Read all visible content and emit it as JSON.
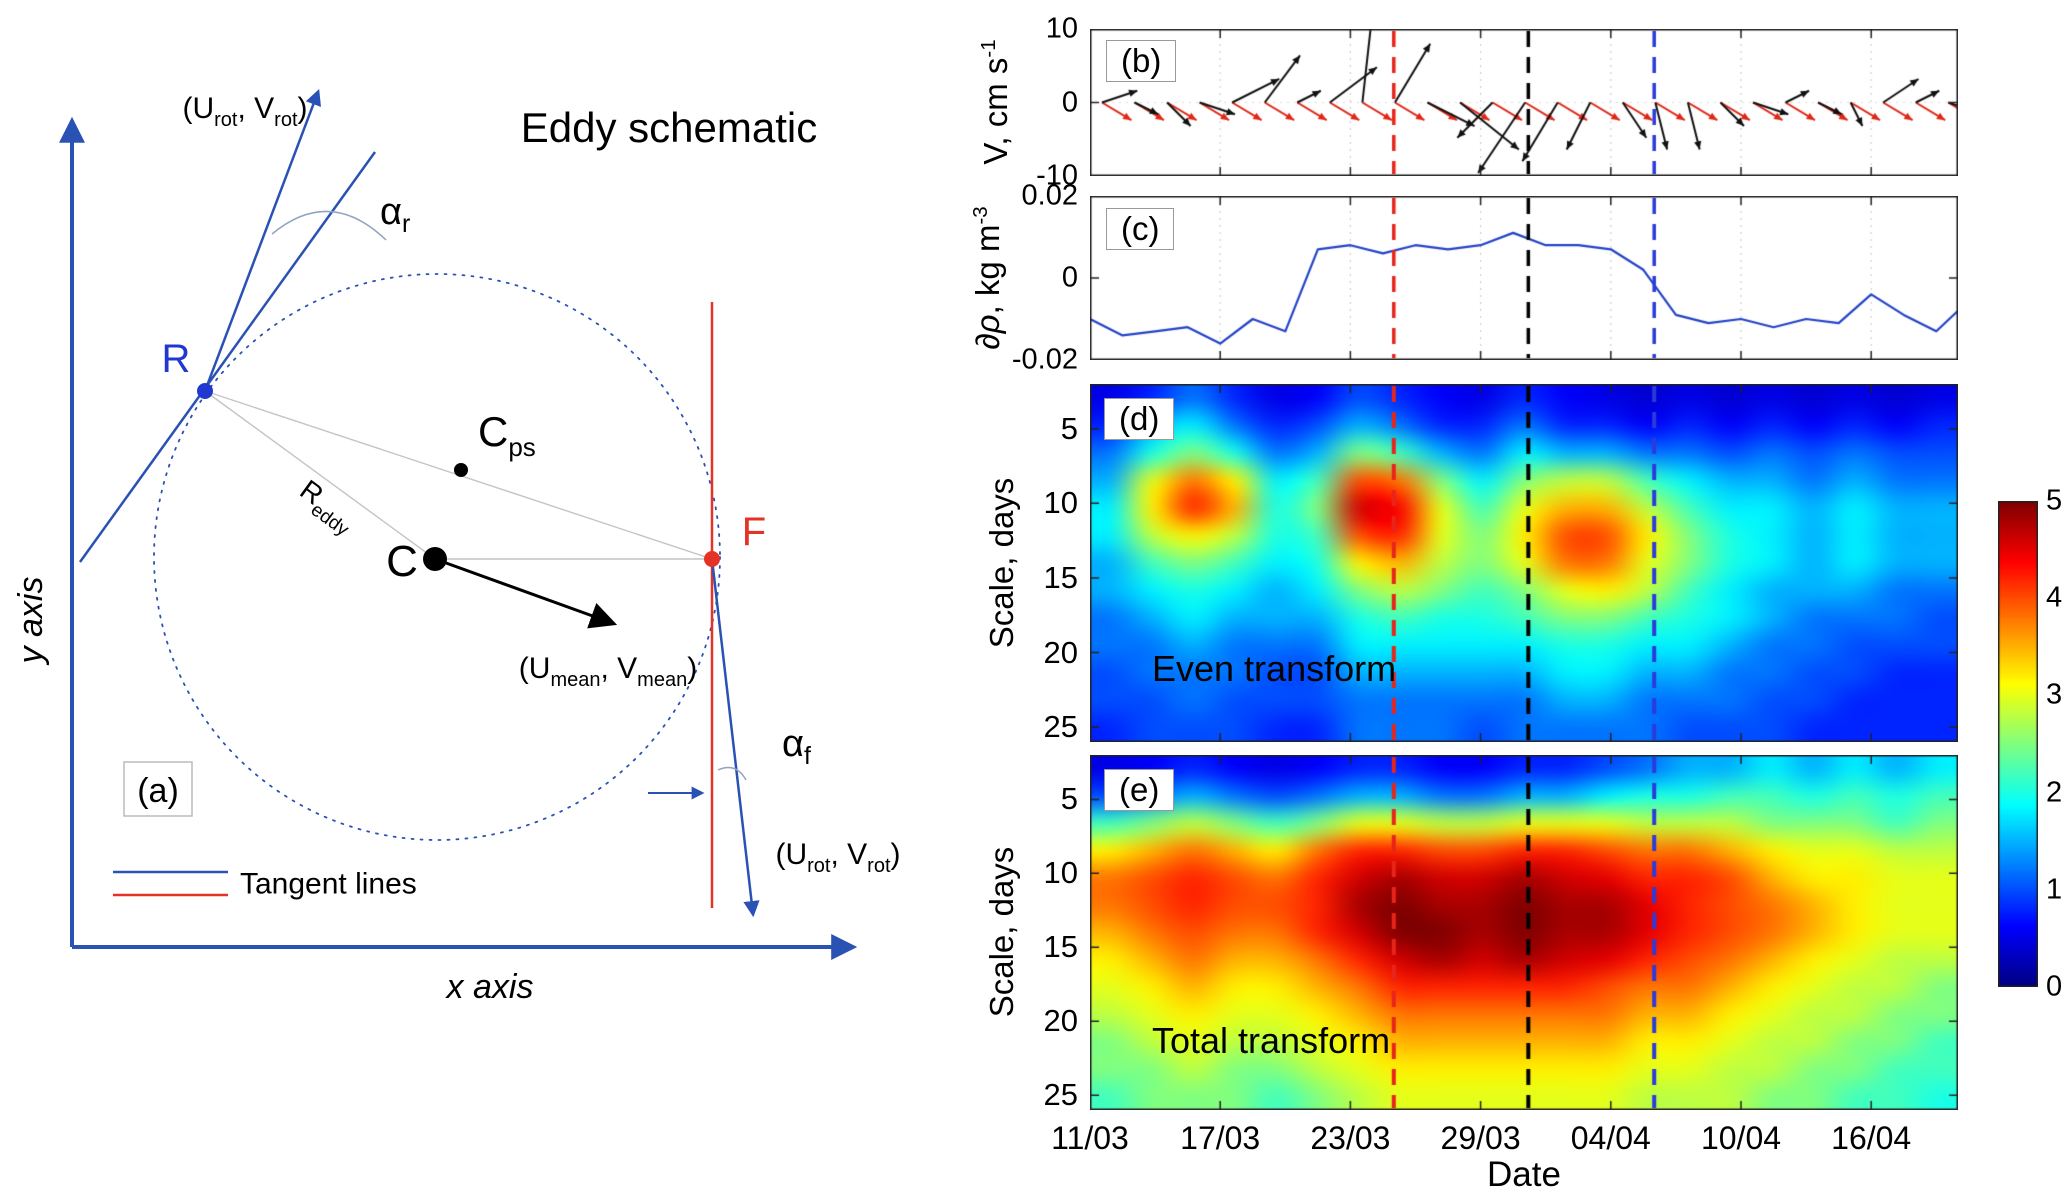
{
  "panel_a": {
    "tag": "(a)",
    "title": "Eddy schematic",
    "x_axis": "x axis",
    "y_axis": "y axis",
    "point_R": "R",
    "point_F": "F",
    "point_C": "C",
    "point_Cps": {
      "base": "C",
      "sub": "ps"
    },
    "r_eddy": {
      "base": "R",
      "sub": "eddy"
    },
    "alpha_r": {
      "base": "α",
      "sub": "r"
    },
    "alpha_f": {
      "base": "α",
      "sub": "f"
    },
    "u_rot": {
      "p1": "(U",
      "s1": "rot",
      "p2": ", V",
      "s2": "rot",
      "p3": ")"
    },
    "u_mean": {
      "p1": "(U",
      "s1": "mean",
      "p2": ", V",
      "s2": "mean",
      "p3": ")"
    },
    "legend_label": "Tangent lines",
    "colors": {
      "blue": "#2a52b4",
      "point_blue": "#2038d0",
      "red": "#e43227",
      "gray": "#c4c4c4"
    }
  },
  "chart_data": [
    {
      "id": "b",
      "type": "quiver",
      "panel_label": "(b)",
      "ylabel": {
        "base": "V, cm s",
        "sup": "-1"
      },
      "ylim": [
        -10,
        10
      ],
      "yticks": [
        "10",
        "0",
        "-10"
      ],
      "ytick_vals": [
        10,
        0,
        -10
      ],
      "day_range": [
        0,
        40
      ],
      "days": [
        0,
        1.5,
        3,
        4.5,
        6,
        7.5,
        9,
        10.5,
        12,
        13.5,
        15,
        16.5,
        18,
        19.5,
        21,
        22.5,
        24,
        25.5,
        27,
        28.5,
        30,
        31.5,
        33,
        34.5,
        36,
        37.5,
        39
      ],
      "black_uv": [
        [
          3,
          1
        ],
        [
          2,
          -1
        ],
        [
          2,
          -2
        ],
        [
          3,
          -1
        ],
        [
          4,
          2
        ],
        [
          3,
          4
        ],
        [
          2,
          1
        ],
        [
          4,
          3
        ],
        [
          1,
          9
        ],
        [
          3,
          5
        ],
        [
          4,
          -2
        ],
        [
          5,
          -4
        ],
        [
          -3,
          -3
        ],
        [
          -4,
          -6
        ],
        [
          -3,
          -5
        ],
        [
          -2,
          -4
        ],
        [
          2,
          -3
        ],
        [
          1,
          -4
        ],
        [
          1,
          -4
        ],
        [
          2,
          -2
        ],
        [
          3,
          -1
        ],
        [
          2,
          1
        ],
        [
          2,
          -1
        ],
        [
          1,
          -2
        ],
        [
          3,
          2
        ],
        [
          2,
          1
        ],
        [
          3,
          -1
        ]
      ],
      "red_arrow": {
        "u": 2.5,
        "v": -1.5
      },
      "black_color": "#111111",
      "red_color": "#e02716"
    },
    {
      "id": "c",
      "type": "line",
      "panel_label": "(c)",
      "ylabel": {
        "it": "∂ρ",
        "base": ", kg m",
        "sup": "-3"
      },
      "ylim": [
        -0.02,
        0.02
      ],
      "yticks": [
        "0.02",
        "0",
        "-0.02"
      ],
      "ytick_vals": [
        0.02,
        0,
        -0.02
      ],
      "x": [
        0,
        1.5,
        3,
        4.5,
        6,
        7.5,
        9,
        10.5,
        12,
        13.5,
        15,
        16.5,
        18,
        19.5,
        21,
        22.5,
        24,
        25.5,
        27,
        28.5,
        30,
        31.5,
        33,
        34.5,
        36,
        37.5,
        39,
        40
      ],
      "y": [
        -0.01,
        -0.014,
        -0.013,
        -0.012,
        -0.016,
        -0.01,
        -0.013,
        0.007,
        0.008,
        0.006,
        0.008,
        0.007,
        0.008,
        0.011,
        0.008,
        0.008,
        0.007,
        0.002,
        -0.009,
        -0.011,
        -0.01,
        -0.012,
        -0.01,
        -0.011,
        -0.004,
        -0.009,
        -0.013,
        -0.008
      ],
      "line_color": "#2343c8"
    },
    {
      "id": "d",
      "type": "heatmap",
      "panel_label": "(d)",
      "title_overlay": "Even transform",
      "ylabel": "Scale, days",
      "yticks": [
        "5",
        "10",
        "15",
        "20",
        "25"
      ],
      "ytick_vals": [
        5,
        10,
        15,
        20,
        25
      ],
      "scale_range": [
        2,
        26
      ],
      "value_range": [
        0,
        5
      ],
      "values": [
        [
          0.5,
          0.8,
          1.2,
          0.8,
          0.5,
          0.6,
          1.0,
          0.8,
          0.6,
          0.5,
          0.8,
          0.6,
          0.5,
          0.4,
          0.5,
          0.4,
          0.5,
          0.4,
          0.5,
          0.4,
          0.5
        ],
        [
          0.8,
          1.5,
          1.8,
          1.2,
          0.8,
          1.0,
          1.5,
          1.2,
          0.8,
          0.8,
          1.2,
          0.8,
          0.8,
          0.6,
          0.8,
          0.6,
          0.8,
          0.6,
          0.8,
          0.6,
          0.8
        ],
        [
          1.2,
          2.0,
          2.5,
          2.0,
          1.2,
          1.5,
          2.5,
          2.2,
          1.5,
          1.2,
          1.8,
          1.5,
          1.5,
          1.2,
          1.2,
          1.0,
          1.2,
          1.0,
          1.2,
          1.0,
          1.0
        ],
        [
          1.5,
          3.0,
          3.8,
          3.2,
          1.8,
          2.2,
          4.0,
          3.8,
          2.5,
          1.8,
          2.5,
          2.8,
          2.8,
          2.2,
          1.8,
          1.5,
          1.5,
          1.2,
          1.5,
          1.2,
          1.2
        ],
        [
          1.8,
          3.2,
          4.2,
          3.5,
          2.0,
          2.5,
          4.6,
          4.4,
          3.0,
          2.2,
          3.0,
          3.5,
          3.5,
          2.8,
          2.2,
          1.8,
          1.8,
          1.5,
          1.8,
          1.5,
          1.5
        ],
        [
          1.8,
          2.8,
          3.2,
          2.8,
          2.0,
          2.2,
          4.0,
          4.2,
          3.0,
          2.5,
          3.2,
          4.0,
          4.0,
          3.2,
          2.5,
          2.0,
          1.8,
          1.5,
          1.8,
          1.5,
          1.5
        ],
        [
          1.5,
          2.2,
          2.5,
          2.2,
          1.8,
          2.0,
          3.2,
          3.5,
          2.8,
          2.5,
          3.0,
          3.8,
          3.8,
          3.0,
          2.5,
          2.0,
          1.8,
          1.5,
          1.8,
          1.5,
          1.5
        ],
        [
          1.5,
          1.8,
          2.0,
          1.8,
          1.5,
          1.8,
          2.5,
          2.8,
          2.5,
          2.2,
          2.5,
          3.0,
          3.2,
          2.8,
          2.2,
          1.8,
          1.5,
          1.5,
          1.5,
          1.2,
          1.2
        ],
        [
          1.2,
          1.5,
          1.8,
          1.5,
          1.5,
          1.5,
          2.0,
          2.2,
          2.0,
          2.0,
          2.2,
          2.5,
          2.5,
          2.2,
          2.0,
          1.8,
          1.5,
          1.2,
          1.2,
          1.2,
          1.0
        ],
        [
          1.2,
          1.2,
          1.5,
          1.2,
          1.2,
          1.2,
          1.8,
          1.8,
          1.8,
          1.8,
          1.8,
          2.0,
          2.0,
          1.8,
          1.8,
          1.5,
          1.2,
          1.2,
          1.0,
          1.0,
          1.0
        ],
        [
          1.0,
          1.2,
          1.2,
          1.2,
          1.0,
          1.0,
          1.5,
          1.5,
          1.5,
          1.5,
          1.5,
          1.8,
          1.8,
          1.5,
          1.5,
          1.2,
          1.2,
          1.0,
          1.0,
          0.8,
          0.8
        ],
        [
          1.0,
          1.0,
          1.2,
          1.0,
          1.0,
          1.0,
          1.2,
          1.2,
          1.2,
          1.2,
          1.2,
          1.5,
          1.5,
          1.2,
          1.2,
          1.2,
          1.0,
          1.0,
          0.8,
          0.8,
          0.8
        ],
        [
          0.8,
          1.0,
          1.0,
          1.0,
          0.8,
          0.8,
          1.2,
          1.2,
          1.2,
          1.0,
          1.2,
          1.2,
          1.2,
          1.2,
          1.0,
          1.0,
          1.0,
          0.8,
          0.8,
          0.8,
          0.8
        ]
      ]
    },
    {
      "id": "e",
      "type": "heatmap",
      "panel_label": "(e)",
      "title_overlay": "Total transform",
      "ylabel": "Scale, days",
      "yticks": [
        "5",
        "10",
        "15",
        "20",
        "25"
      ],
      "ytick_vals": [
        5,
        10,
        15,
        20,
        25
      ],
      "scale_range": [
        2,
        26
      ],
      "value_range": [
        0,
        5
      ],
      "xlabel": "Date",
      "xticks": [
        "11/03",
        "17/03",
        "23/03",
        "29/03",
        "04/04",
        "10/04",
        "16/04"
      ],
      "xtick_days": [
        0,
        6,
        12,
        18,
        24,
        30,
        36
      ],
      "values": [
        [
          0.5,
          0.6,
          0.8,
          0.6,
          0.5,
          0.6,
          0.8,
          0.8,
          0.6,
          0.6,
          0.8,
          0.8,
          1.0,
          1.2,
          1.5,
          1.5,
          1.8,
          1.5,
          1.8,
          1.5,
          1.8
        ],
        [
          1.0,
          1.2,
          1.5,
          1.2,
          1.0,
          1.2,
          1.5,
          1.5,
          1.2,
          1.2,
          1.5,
          1.5,
          1.8,
          2.0,
          2.0,
          2.2,
          2.2,
          2.0,
          2.2,
          2.0,
          2.2
        ],
        [
          2.2,
          2.5,
          2.8,
          2.5,
          2.2,
          2.5,
          3.0,
          3.0,
          2.8,
          2.8,
          3.0,
          3.0,
          3.0,
          2.8,
          2.8,
          2.8,
          2.5,
          2.5,
          2.5,
          2.2,
          2.5
        ],
        [
          3.2,
          3.5,
          3.8,
          3.5,
          3.2,
          3.8,
          4.2,
          4.2,
          4.0,
          4.0,
          4.2,
          4.2,
          4.0,
          3.8,
          3.8,
          3.5,
          3.2,
          3.0,
          3.0,
          2.8,
          2.8
        ],
        [
          3.8,
          4.0,
          4.2,
          4.0,
          3.8,
          4.2,
          4.6,
          4.8,
          4.6,
          4.6,
          4.8,
          4.6,
          4.5,
          4.2,
          4.2,
          4.0,
          3.5,
          3.2,
          3.2,
          3.0,
          3.0
        ],
        [
          3.8,
          4.0,
          4.2,
          4.0,
          4.0,
          4.2,
          4.8,
          5.0,
          4.8,
          4.8,
          5.0,
          4.8,
          4.8,
          4.5,
          4.2,
          4.0,
          3.8,
          3.5,
          3.2,
          3.0,
          3.0
        ],
        [
          3.5,
          3.8,
          4.0,
          3.8,
          3.8,
          4.2,
          4.6,
          5.0,
          5.0,
          4.8,
          5.0,
          4.8,
          4.8,
          4.5,
          4.2,
          4.0,
          3.8,
          3.5,
          3.2,
          3.0,
          3.0
        ],
        [
          3.2,
          3.5,
          3.8,
          3.5,
          3.5,
          3.8,
          4.2,
          4.6,
          4.8,
          4.6,
          4.8,
          4.6,
          4.5,
          4.2,
          4.0,
          3.8,
          3.5,
          3.2,
          3.0,
          2.8,
          2.8
        ],
        [
          3.0,
          3.2,
          3.5,
          3.2,
          3.2,
          3.5,
          3.8,
          4.2,
          4.2,
          4.2,
          4.2,
          4.2,
          4.0,
          3.8,
          3.8,
          3.5,
          3.2,
          3.0,
          2.8,
          2.8,
          2.5
        ],
        [
          2.8,
          3.0,
          3.2,
          3.0,
          3.0,
          3.2,
          3.5,
          3.8,
          3.8,
          3.8,
          3.8,
          3.8,
          3.8,
          3.5,
          3.5,
          3.2,
          3.0,
          2.8,
          2.8,
          2.5,
          2.5
        ],
        [
          2.5,
          2.8,
          3.0,
          2.8,
          2.8,
          3.0,
          3.2,
          3.5,
          3.5,
          3.5,
          3.5,
          3.5,
          3.5,
          3.2,
          3.2,
          3.0,
          2.8,
          2.8,
          2.5,
          2.5,
          2.2
        ],
        [
          2.5,
          2.5,
          2.8,
          2.5,
          2.5,
          2.8,
          3.0,
          3.2,
          3.2,
          3.2,
          3.2,
          3.2,
          3.2,
          3.0,
          3.0,
          2.8,
          2.8,
          2.5,
          2.5,
          2.2,
          2.2
        ],
        [
          2.2,
          2.5,
          2.5,
          2.5,
          2.2,
          2.5,
          2.8,
          3.0,
          3.0,
          3.0,
          3.0,
          3.0,
          3.0,
          2.8,
          2.8,
          2.8,
          2.5,
          2.5,
          2.2,
          2.2,
          2.0
        ]
      ]
    }
  ],
  "colorbar": {
    "min": 0,
    "max": 5,
    "ticks": [
      "0",
      "1",
      "2",
      "3",
      "4",
      "5"
    ],
    "tick_vals": [
      0,
      1,
      2,
      3,
      4,
      5
    ]
  },
  "event_lines": [
    {
      "day": 14,
      "color": "#e8251a"
    },
    {
      "day": 20.2,
      "color": "#000000"
    },
    {
      "day": 26,
      "color": "#2b3bdb"
    }
  ]
}
